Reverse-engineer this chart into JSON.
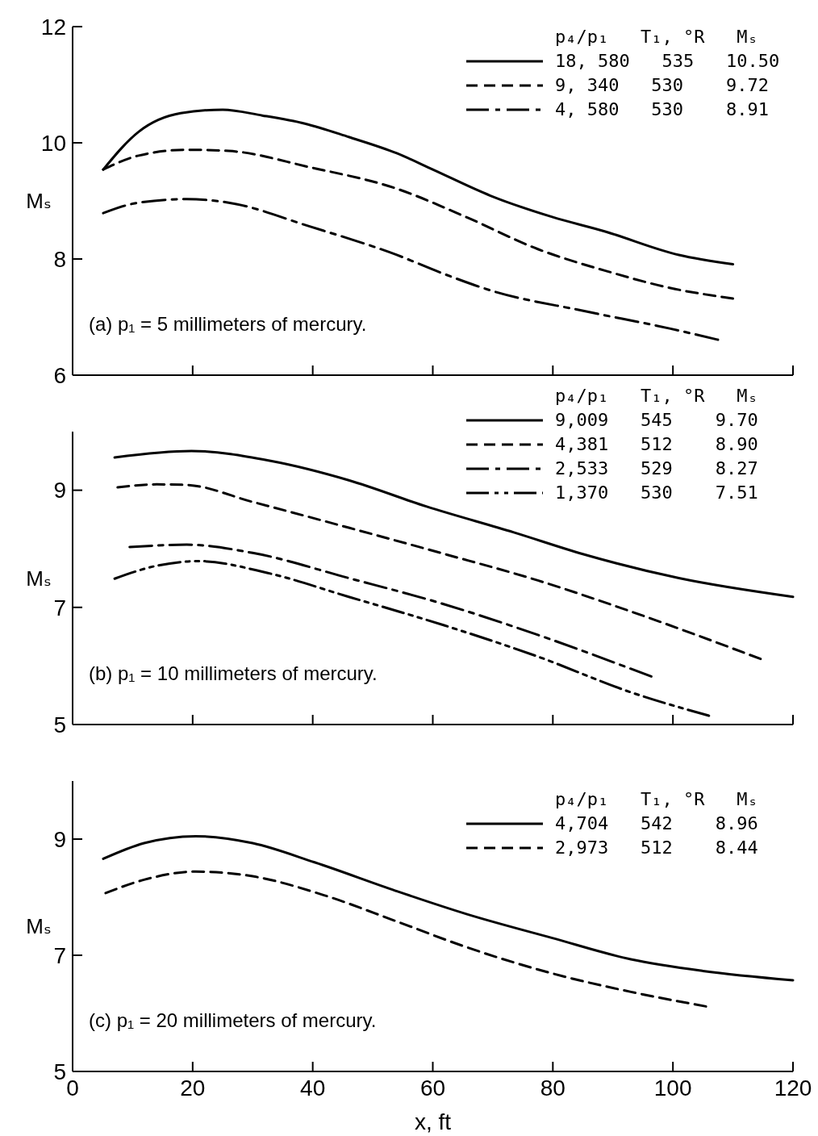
{
  "chart_data": [
    {
      "type": "line",
      "ylabel": "Mₛ",
      "xlim": [
        0,
        120
      ],
      "xticks": [
        {
          "value": 0,
          "label": null
        },
        {
          "value": 20,
          "label": null
        },
        {
          "value": 40,
          "label": null
        },
        {
          "value": 60,
          "label": null
        },
        {
          "value": 80,
          "label": null
        },
        {
          "value": 100,
          "label": null
        },
        {
          "value": 120,
          "label": null
        }
      ],
      "ylim": [
        6,
        12
      ],
      "yticks": [
        6,
        8,
        10,
        12
      ],
      "tick_labels": "y",
      "grid": false,
      "legend": "top right",
      "legend_title": "p₄/p₁   T₁, °R   Mₛ",
      "annotations": [
        "(a) p₁ = 5 millimeters of mercury."
      ],
      "series": [
        {
          "name": "18, 580   535   10.50",
          "color": "#000000",
          "line_style": "solid",
          "x": [
            5.1,
            11,
            18,
            25,
            31.6,
            38.7,
            46,
            54,
            60,
            69.6,
            80,
            88.5,
            101,
            110
          ],
          "values": [
            9.54,
            10.19,
            10.51,
            10.57,
            10.47,
            10.33,
            10.1,
            9.82,
            9.54,
            9.09,
            8.72,
            8.48,
            8.07,
            7.91
          ]
        },
        {
          "name": "9, 340   530    9.72",
          "color": "#000000",
          "line_style": "dashed",
          "x": [
            5.1,
            11,
            19,
            26,
            39.5,
            54,
            65.6,
            77.5,
            89,
            99.6,
            110
          ],
          "values": [
            9.54,
            9.78,
            9.88,
            9.86,
            9.58,
            9.21,
            8.72,
            8.17,
            7.79,
            7.5,
            7.32
          ]
        },
        {
          "name": "4, 580   530    8.91",
          "color": "#000000",
          "line_style": "dashdot",
          "x": [
            5.1,
            11,
            19,
            26,
            39.5,
            54,
            61.7,
            69.6,
            85.4,
            99.6,
            107.5
          ],
          "values": [
            8.79,
            8.97,
            9.03,
            8.97,
            8.56,
            8.07,
            7.75,
            7.46,
            7.1,
            6.8,
            6.61
          ]
        }
      ]
    },
    {
      "type": "line",
      "ylabel": "Mₛ",
      "xlim": [
        0,
        120
      ],
      "xticks": [
        {
          "value": 0,
          "label": null
        },
        {
          "value": 20,
          "label": null
        },
        {
          "value": 40,
          "label": null
        },
        {
          "value": 60,
          "label": null
        },
        {
          "value": 80,
          "label": null
        },
        {
          "value": 100,
          "label": null
        },
        {
          "value": 120,
          "label": null
        }
      ],
      "ylim": [
        5,
        10
      ],
      "yticks": [
        5,
        7,
        9
      ],
      "tick_labels": "y",
      "grid": false,
      "legend": "top right",
      "legend_title": "p₄/p₁   T₁, °R   Mₛ",
      "annotations": [
        "(b) p₁ = 10 millimeters of mercury."
      ],
      "series": [
        {
          "name": "9,009   545    9.70",
          "color": "#000000",
          "line_style": "solid",
          "x": [
            7,
            19.8,
            33,
            46,
            59,
            73.5,
            85,
            101,
            120
          ],
          "values": [
            9.56,
            9.67,
            9.5,
            9.17,
            8.72,
            8.28,
            7.91,
            7.5,
            7.18
          ]
        },
        {
          "name": "4,381   512    8.90",
          "color": "#000000",
          "line_style": "dashed",
          "x": [
            7.5,
            14,
            19,
            30,
            46,
            62,
            77.5,
            93,
            114.6
          ],
          "values": [
            9.05,
            9.1,
            9.09,
            8.8,
            8.36,
            7.91,
            7.46,
            6.93,
            6.12
          ]
        },
        {
          "name": "2,533   529    8.27",
          "color": "#000000",
          "line_style": "dashdot",
          "x": [
            9.5,
            19,
            30,
            46,
            61.7,
            77.5,
            96.4
          ],
          "values": [
            8.03,
            8.07,
            7.93,
            7.5,
            7.06,
            6.53,
            5.82
          ]
        },
        {
          "name": "1,370   530    7.51",
          "color": "#000000",
          "line_style": "dashdotdot",
          "x": [
            7,
            14,
            21,
            32.4,
            46,
            62,
            77.5,
            93,
            106
          ],
          "values": [
            7.49,
            7.71,
            7.79,
            7.59,
            7.18,
            6.69,
            6.16,
            5.55,
            5.15
          ]
        }
      ]
    },
    {
      "type": "line",
      "ylabel": "Mₛ",
      "xlabel": "x, ft",
      "xlim": [
        0,
        120
      ],
      "xticks": [
        0,
        20,
        40,
        60,
        80,
        100,
        120
      ],
      "ylim": [
        5,
        10
      ],
      "yticks": [
        5,
        7,
        9
      ],
      "grid": false,
      "legend": "top right",
      "legend_title": "p₄/p₁   T₁, °R   Mₛ",
      "annotations": [
        "(c) p₁ = 20 millimeters of mercury."
      ],
      "series": [
        {
          "name": "4,704   542    8.96",
          "color": "#000000",
          "line_style": "solid",
          "x": [
            5.1,
            11.9,
            20.5,
            30,
            40.3,
            53.8,
            65.6,
            79.8,
            93,
            105,
            120
          ],
          "values": [
            8.66,
            8.93,
            9.05,
            8.93,
            8.6,
            8.11,
            7.71,
            7.3,
            6.93,
            6.73,
            6.57
          ]
        },
        {
          "name": "2,973   512    8.44",
          "color": "#000000",
          "line_style": "dashed",
          "x": [
            5.5,
            11.9,
            20.5,
            30,
            42,
            53.8,
            65.6,
            79.8,
            93,
            105.5
          ],
          "values": [
            8.07,
            8.3,
            8.44,
            8.36,
            8.03,
            7.59,
            7.14,
            6.69,
            6.37,
            6.12
          ]
        }
      ]
    }
  ]
}
